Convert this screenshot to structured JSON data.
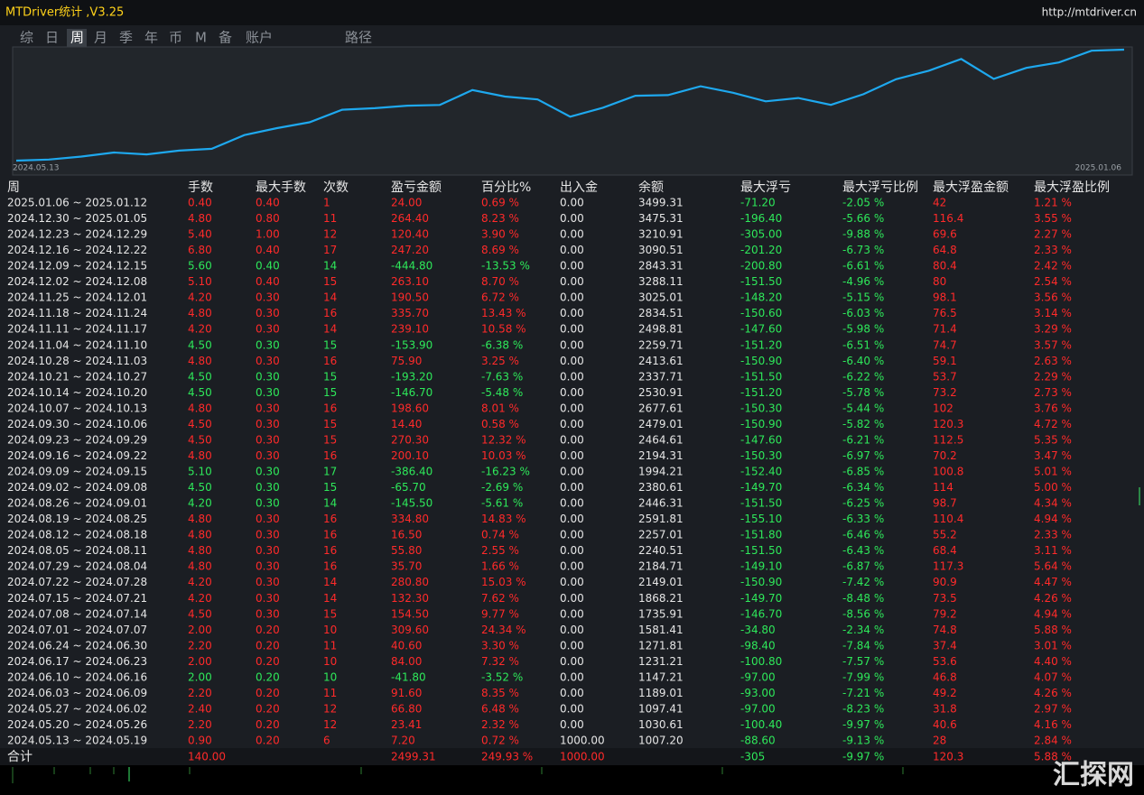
{
  "header": {
    "title": "MTDriver统计 ,V3.25",
    "url": "http://mtdriver.cn"
  },
  "tabs": [
    "综",
    "日",
    "周",
    "月",
    "季",
    "年",
    "币",
    "M",
    "备",
    "账户",
    "路径"
  ],
  "chart": {
    "x_labels": [
      "2024.05.13",
      "2025.01.06"
    ]
  },
  "table": {
    "columns": [
      "周",
      "手数",
      "最大手数",
      "次数",
      "盈亏金额",
      "百分比%",
      "出入金",
      "余额",
      "最大浮亏",
      "最大浮亏比例",
      "最大浮盈金额",
      "最大浮盈比例"
    ],
    "rows": [
      [
        "2025.01.06 ~ 2025.01.12",
        "0.40",
        "0.40",
        "1",
        "24.00",
        "0.69 %",
        "0.00",
        "3499.31",
        "-71.20",
        "-2.05 %",
        "42",
        "1.21 %"
      ],
      [
        "2024.12.30 ~ 2025.01.05",
        "4.80",
        "0.80",
        "11",
        "264.40",
        "8.23 %",
        "0.00",
        "3475.31",
        "-196.40",
        "-5.66 %",
        "116.4",
        "3.55 %"
      ],
      [
        "2024.12.23 ~ 2024.12.29",
        "5.40",
        "1.00",
        "12",
        "120.40",
        "3.90 %",
        "0.00",
        "3210.91",
        "-305.00",
        "-9.88 %",
        "69.6",
        "2.27 %"
      ],
      [
        "2024.12.16 ~ 2024.12.22",
        "6.80",
        "0.40",
        "17",
        "247.20",
        "8.69 %",
        "0.00",
        "3090.51",
        "-201.20",
        "-6.73 %",
        "64.8",
        "2.33 %"
      ],
      [
        "2024.12.09 ~ 2024.12.15",
        "5.60",
        "0.40",
        "14",
        "-444.80",
        "-13.53 %",
        "0.00",
        "2843.31",
        "-200.80",
        "-6.61 %",
        "80.4",
        "2.42 %"
      ],
      [
        "2024.12.02 ~ 2024.12.08",
        "5.10",
        "0.40",
        "15",
        "263.10",
        "8.70 %",
        "0.00",
        "3288.11",
        "-151.50",
        "-4.96 %",
        "80",
        "2.54 %"
      ],
      [
        "2024.11.25 ~ 2024.12.01",
        "4.20",
        "0.30",
        "14",
        "190.50",
        "6.72 %",
        "0.00",
        "3025.01",
        "-148.20",
        "-5.15 %",
        "98.1",
        "3.56 %"
      ],
      [
        "2024.11.18 ~ 2024.11.24",
        "4.80",
        "0.30",
        "16",
        "335.70",
        "13.43 %",
        "0.00",
        "2834.51",
        "-150.60",
        "-6.03 %",
        "76.5",
        "3.14 %"
      ],
      [
        "2024.11.11 ~ 2024.11.17",
        "4.20",
        "0.30",
        "14",
        "239.10",
        "10.58 %",
        "0.00",
        "2498.81",
        "-147.60",
        "-5.98 %",
        "71.4",
        "3.29 %"
      ],
      [
        "2024.11.04 ~ 2024.11.10",
        "4.50",
        "0.30",
        "15",
        "-153.90",
        "-6.38 %",
        "0.00",
        "2259.71",
        "-151.20",
        "-6.51 %",
        "74.7",
        "3.57 %"
      ],
      [
        "2024.10.28 ~ 2024.11.03",
        "4.80",
        "0.30",
        "16",
        "75.90",
        "3.25 %",
        "0.00",
        "2413.61",
        "-150.90",
        "-6.40 %",
        "59.1",
        "2.63 %"
      ],
      [
        "2024.10.21 ~ 2024.10.27",
        "4.50",
        "0.30",
        "15",
        "-193.20",
        "-7.63 %",
        "0.00",
        "2337.71",
        "-151.50",
        "-6.22 %",
        "53.7",
        "2.29 %"
      ],
      [
        "2024.10.14 ~ 2024.10.20",
        "4.50",
        "0.30",
        "15",
        "-146.70",
        "-5.48 %",
        "0.00",
        "2530.91",
        "-151.20",
        "-5.78 %",
        "73.2",
        "2.73 %"
      ],
      [
        "2024.10.07 ~ 2024.10.13",
        "4.80",
        "0.30",
        "16",
        "198.60",
        "8.01 %",
        "0.00",
        "2677.61",
        "-150.30",
        "-5.44 %",
        "102",
        "3.76 %"
      ],
      [
        "2024.09.30 ~ 2024.10.06",
        "4.50",
        "0.30",
        "15",
        "14.40",
        "0.58 %",
        "0.00",
        "2479.01",
        "-150.90",
        "-5.82 %",
        "120.3",
        "4.72 %"
      ],
      [
        "2024.09.23 ~ 2024.09.29",
        "4.50",
        "0.30",
        "15",
        "270.30",
        "12.32 %",
        "0.00",
        "2464.61",
        "-147.60",
        "-6.21 %",
        "112.5",
        "5.35 %"
      ],
      [
        "2024.09.16 ~ 2024.09.22",
        "4.80",
        "0.30",
        "16",
        "200.10",
        "10.03 %",
        "0.00",
        "2194.31",
        "-150.30",
        "-6.97 %",
        "70.2",
        "3.47 %"
      ],
      [
        "2024.09.09 ~ 2024.09.15",
        "5.10",
        "0.30",
        "17",
        "-386.40",
        "-16.23 %",
        "0.00",
        "1994.21",
        "-152.40",
        "-6.85 %",
        "100.8",
        "5.01 %"
      ],
      [
        "2024.09.02 ~ 2024.09.08",
        "4.50",
        "0.30",
        "15",
        "-65.70",
        "-2.69 %",
        "0.00",
        "2380.61",
        "-149.70",
        "-6.34 %",
        "114",
        "5.00 %"
      ],
      [
        "2024.08.26 ~ 2024.09.01",
        "4.20",
        "0.30",
        "14",
        "-145.50",
        "-5.61 %",
        "0.00",
        "2446.31",
        "-151.50",
        "-6.25 %",
        "98.7",
        "4.34 %"
      ],
      [
        "2024.08.19 ~ 2024.08.25",
        "4.80",
        "0.30",
        "16",
        "334.80",
        "14.83 %",
        "0.00",
        "2591.81",
        "-155.10",
        "-6.33 %",
        "110.4",
        "4.94 %"
      ],
      [
        "2024.08.12 ~ 2024.08.18",
        "4.80",
        "0.30",
        "16",
        "16.50",
        "0.74 %",
        "0.00",
        "2257.01",
        "-151.80",
        "-6.46 %",
        "55.2",
        "2.33 %"
      ],
      [
        "2024.08.05 ~ 2024.08.11",
        "4.80",
        "0.30",
        "16",
        "55.80",
        "2.55 %",
        "0.00",
        "2240.51",
        "-151.50",
        "-6.43 %",
        "68.4",
        "3.11 %"
      ],
      [
        "2024.07.29 ~ 2024.08.04",
        "4.80",
        "0.30",
        "16",
        "35.70",
        "1.66 %",
        "0.00",
        "2184.71",
        "-149.10",
        "-6.87 %",
        "117.3",
        "5.64 %"
      ],
      [
        "2024.07.22 ~ 2024.07.28",
        "4.20",
        "0.30",
        "14",
        "280.80",
        "15.03 %",
        "0.00",
        "2149.01",
        "-150.90",
        "-7.42 %",
        "90.9",
        "4.47 %"
      ],
      [
        "2024.07.15 ~ 2024.07.21",
        "4.20",
        "0.30",
        "14",
        "132.30",
        "7.62 %",
        "0.00",
        "1868.21",
        "-149.70",
        "-8.48 %",
        "73.5",
        "4.26 %"
      ],
      [
        "2024.07.08 ~ 2024.07.14",
        "4.50",
        "0.30",
        "15",
        "154.50",
        "9.77 %",
        "0.00",
        "1735.91",
        "-146.70",
        "-8.56 %",
        "79.2",
        "4.94 %"
      ],
      [
        "2024.07.01 ~ 2024.07.07",
        "2.00",
        "0.20",
        "10",
        "309.60",
        "24.34 %",
        "0.00",
        "1581.41",
        "-34.80",
        "-2.34 %",
        "74.8",
        "5.88 %"
      ],
      [
        "2024.06.24 ~ 2024.06.30",
        "2.20",
        "0.20",
        "11",
        "40.60",
        "3.30 %",
        "0.00",
        "1271.81",
        "-98.40",
        "-7.84 %",
        "37.4",
        "3.01 %"
      ],
      [
        "2024.06.17 ~ 2024.06.23",
        "2.00",
        "0.20",
        "10",
        "84.00",
        "7.32 %",
        "0.00",
        "1231.21",
        "-100.80",
        "-7.57 %",
        "53.6",
        "4.40 %"
      ],
      [
        "2024.06.10 ~ 2024.06.16",
        "2.00",
        "0.20",
        "10",
        "-41.80",
        "-3.52 %",
        "0.00",
        "1147.21",
        "-97.00",
        "-7.99 %",
        "46.8",
        "4.07 %"
      ],
      [
        "2024.06.03 ~ 2024.06.09",
        "2.20",
        "0.20",
        "11",
        "91.60",
        "8.35 %",
        "0.00",
        "1189.01",
        "-93.00",
        "-7.21 %",
        "49.2",
        "4.26 %"
      ],
      [
        "2024.05.27 ~ 2024.06.02",
        "2.40",
        "0.20",
        "12",
        "66.80",
        "6.48 %",
        "0.00",
        "1097.41",
        "-97.00",
        "-8.23 %",
        "31.8",
        "2.97 %"
      ],
      [
        "2024.05.20 ~ 2024.05.26",
        "2.20",
        "0.20",
        "12",
        "23.41",
        "2.32 %",
        "0.00",
        "1030.61",
        "-100.40",
        "-9.97 %",
        "40.6",
        "4.16 %"
      ],
      [
        "2024.05.13 ~ 2024.05.19",
        "0.90",
        "0.20",
        "6",
        "7.20",
        "0.72 %",
        "1000.00",
        "1007.20",
        "-88.60",
        "-9.13 %",
        "28",
        "2.84 %"
      ]
    ],
    "total": [
      "合计",
      "140.00",
      null,
      null,
      "2499.31",
      "249.93 %",
      "1000.00",
      null,
      "-305",
      "-9.97 %",
      "120.3",
      "5.88 %"
    ]
  },
  "watermark": "汇探网"
}
